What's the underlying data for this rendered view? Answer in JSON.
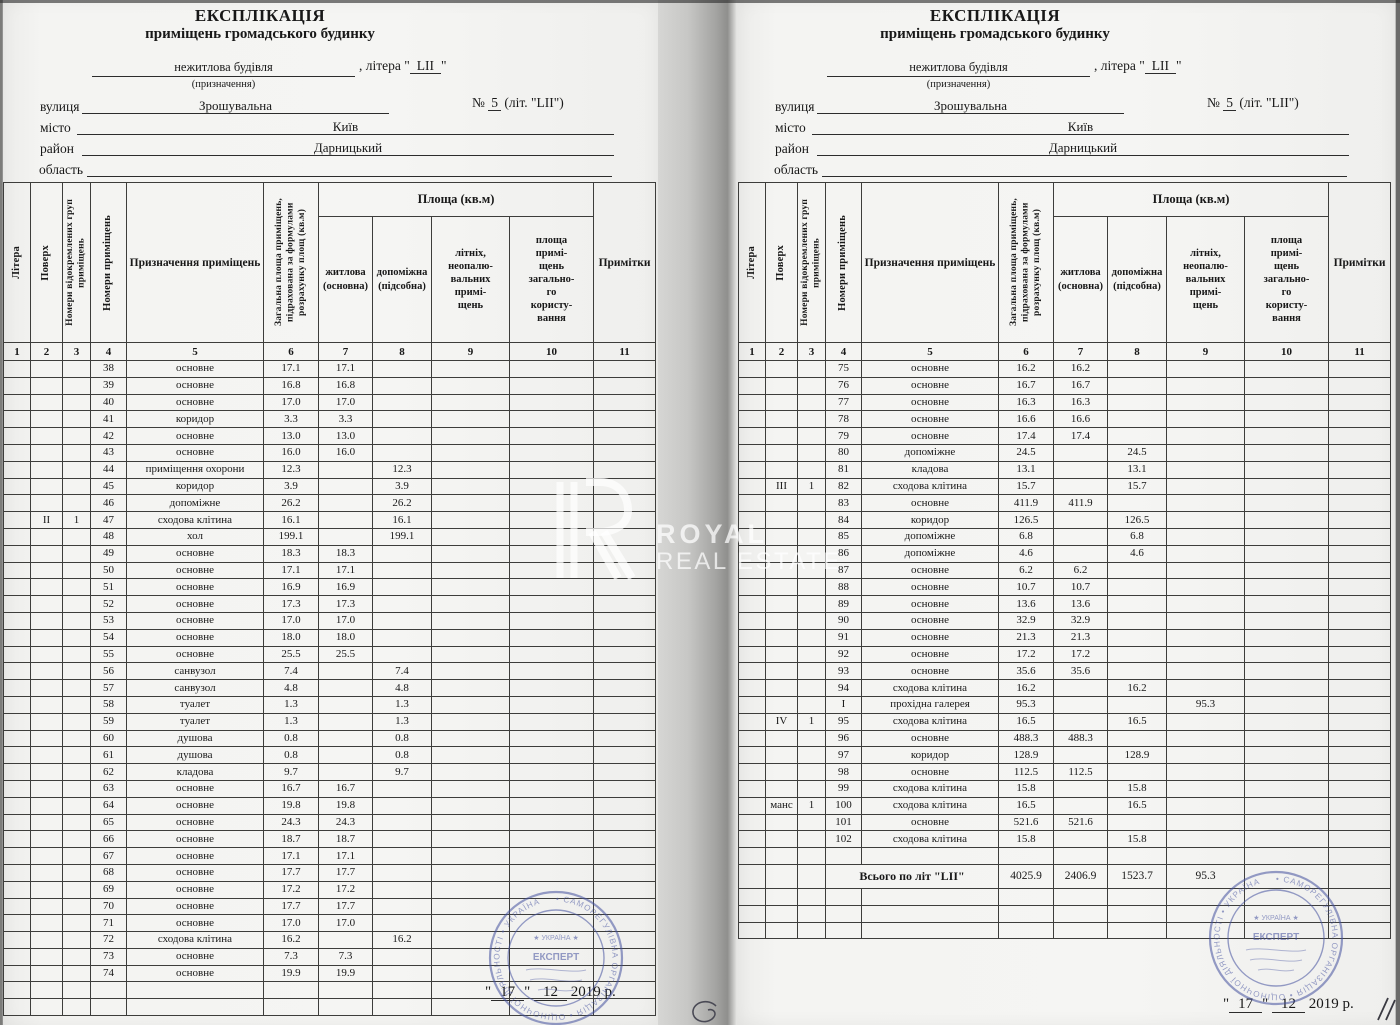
{
  "doc": {
    "title": "ЕКСПЛІКАЦІЯ",
    "subtitle": "приміщень громадського будинку",
    "purpose_value": "нежитлова будівля",
    "purpose_caption": "(призначення)",
    "litera_prefix": ", літера \"",
    "litera_value": "LII",
    "litera_suffix": "\"",
    "street_label": "вулиця",
    "street_value": "Зрошувальна",
    "num_label": "№",
    "num_value": "5",
    "num_suffix": "(літ. \"LII\")",
    "city_label": "місто",
    "city_value": "Київ",
    "district_label": "район",
    "district_value": "Дарницький",
    "region_label": "область"
  },
  "table_header": {
    "area_group": "Площа (кв.м)",
    "cols": [
      "Літера",
      "Поверх",
      "Номери відокремлених груп\nприміщень",
      "Номери приміщень",
      "Призначення приміщень",
      "Загальна площа приміщень,\nпідрахована за формулами\nрозрахунку площ (кв.м)",
      "житлова\n(основна)",
      "допоміжна\n(підсобна)",
      "літніх,\nнеопалю-\nвальних\nпримі-\nщень",
      "площа\nпримі-\nщень\nзагально-\nго\nкористу-\nвання",
      "Примітки"
    ],
    "numbers": [
      "1",
      "2",
      "3",
      "4",
      "5",
      "6",
      "7",
      "8",
      "9",
      "10",
      "11"
    ]
  },
  "pages": [
    {
      "rows": [
        [
          "",
          "",
          "",
          "38",
          "основне",
          "17.1",
          "17.1",
          "",
          "",
          "",
          ""
        ],
        [
          "",
          "",
          "",
          "39",
          "основне",
          "16.8",
          "16.8",
          "",
          "",
          "",
          ""
        ],
        [
          "",
          "",
          "",
          "40",
          "основне",
          "17.0",
          "17.0",
          "",
          "",
          "",
          ""
        ],
        [
          "",
          "",
          "",
          "41",
          "коридор",
          "3.3",
          "3.3",
          "",
          "",
          "",
          ""
        ],
        [
          "",
          "",
          "",
          "42",
          "основне",
          "13.0",
          "13.0",
          "",
          "",
          "",
          ""
        ],
        [
          "",
          "",
          "",
          "43",
          "основне",
          "16.0",
          "16.0",
          "",
          "",
          "",
          ""
        ],
        [
          "",
          "",
          "",
          "44",
          "приміщення охорони",
          "12.3",
          "",
          "12.3",
          "",
          "",
          ""
        ],
        [
          "",
          "",
          "",
          "45",
          "коридор",
          "3.9",
          "",
          "3.9",
          "",
          "",
          ""
        ],
        [
          "",
          "",
          "",
          "46",
          "допоміжне",
          "26.2",
          "",
          "26.2",
          "",
          "",
          ""
        ],
        [
          "",
          "II",
          "1",
          "47",
          "сходова клітина",
          "16.1",
          "",
          "16.1",
          "",
          "",
          ""
        ],
        [
          "",
          "",
          "",
          "48",
          "хол",
          "199.1",
          "",
          "199.1",
          "",
          "",
          ""
        ],
        [
          "",
          "",
          "",
          "49",
          "основне",
          "18.3",
          "18.3",
          "",
          "",
          "",
          ""
        ],
        [
          "",
          "",
          "",
          "50",
          "основне",
          "17.1",
          "17.1",
          "",
          "",
          "",
          ""
        ],
        [
          "",
          "",
          "",
          "51",
          "основне",
          "16.9",
          "16.9",
          "",
          "",
          "",
          ""
        ],
        [
          "",
          "",
          "",
          "52",
          "основне",
          "17.3",
          "17.3",
          "",
          "",
          "",
          ""
        ],
        [
          "",
          "",
          "",
          "53",
          "основне",
          "17.0",
          "17.0",
          "",
          "",
          "",
          ""
        ],
        [
          "",
          "",
          "",
          "54",
          "основне",
          "18.0",
          "18.0",
          "",
          "",
          "",
          ""
        ],
        [
          "",
          "",
          "",
          "55",
          "основне",
          "25.5",
          "25.5",
          "",
          "",
          "",
          ""
        ],
        [
          "",
          "",
          "",
          "56",
          "санвузол",
          "7.4",
          "",
          "7.4",
          "",
          "",
          ""
        ],
        [
          "",
          "",
          "",
          "57",
          "санвузол",
          "4.8",
          "",
          "4.8",
          "",
          "",
          ""
        ],
        [
          "",
          "",
          "",
          "58",
          "туалет",
          "1.3",
          "",
          "1.3",
          "",
          "",
          ""
        ],
        [
          "",
          "",
          "",
          "59",
          "туалет",
          "1.3",
          "",
          "1.3",
          "",
          "",
          ""
        ],
        [
          "",
          "",
          "",
          "60",
          "душова",
          "0.8",
          "",
          "0.8",
          "",
          "",
          ""
        ],
        [
          "",
          "",
          "",
          "61",
          "душова",
          "0.8",
          "",
          "0.8",
          "",
          "",
          ""
        ],
        [
          "",
          "",
          "",
          "62",
          "кладова",
          "9.7",
          "",
          "9.7",
          "",
          "",
          ""
        ],
        [
          "",
          "",
          "",
          "63",
          "основне",
          "16.7",
          "16.7",
          "",
          "",
          "",
          ""
        ],
        [
          "",
          "",
          "",
          "64",
          "основне",
          "19.8",
          "19.8",
          "",
          "",
          "",
          ""
        ],
        [
          "",
          "",
          "",
          "65",
          "основне",
          "24.3",
          "24.3",
          "",
          "",
          "",
          ""
        ],
        [
          "",
          "",
          "",
          "66",
          "основне",
          "18.7",
          "18.7",
          "",
          "",
          "",
          ""
        ],
        [
          "",
          "",
          "",
          "67",
          "основне",
          "17.1",
          "17.1",
          "",
          "",
          "",
          ""
        ],
        [
          "",
          "",
          "",
          "68",
          "основне",
          "17.7",
          "17.7",
          "",
          "",
          "",
          ""
        ],
        [
          "",
          "",
          "",
          "69",
          "основне",
          "17.2",
          "17.2",
          "",
          "",
          "",
          ""
        ],
        [
          "",
          "",
          "",
          "70",
          "основне",
          "17.7",
          "17.7",
          "",
          "",
          "",
          ""
        ],
        [
          "",
          "",
          "",
          "71",
          "основне",
          "17.0",
          "17.0",
          "",
          "",
          "",
          ""
        ],
        [
          "",
          "",
          "",
          "72",
          "сходова клітина",
          "16.2",
          "",
          "16.2",
          "",
          "",
          ""
        ],
        [
          "",
          "",
          "",
          "73",
          "основне",
          "7.3",
          "7.3",
          "",
          "",
          "",
          ""
        ],
        [
          "",
          "",
          "",
          "74",
          "основне",
          "19.9",
          "19.9",
          "",
          "",
          "",
          ""
        ]
      ],
      "blank_rows_bottom": 2,
      "date": {
        "day": "17",
        "month": "12",
        "year": "2019 р."
      }
    },
    {
      "rows": [
        [
          "",
          "",
          "",
          "75",
          "основне",
          "16.2",
          "16.2",
          "",
          "",
          "",
          ""
        ],
        [
          "",
          "",
          "",
          "76",
          "основне",
          "16.7",
          "16.7",
          "",
          "",
          "",
          ""
        ],
        [
          "",
          "",
          "",
          "77",
          "основне",
          "16.3",
          "16.3",
          "",
          "",
          "",
          ""
        ],
        [
          "",
          "",
          "",
          "78",
          "основне",
          "16.6",
          "16.6",
          "",
          "",
          "",
          ""
        ],
        [
          "",
          "",
          "",
          "79",
          "основне",
          "17.4",
          "17.4",
          "",
          "",
          "",
          ""
        ],
        [
          "",
          "",
          "",
          "80",
          "допоміжне",
          "24.5",
          "",
          "24.5",
          "",
          "",
          ""
        ],
        [
          "",
          "",
          "",
          "81",
          "кладова",
          "13.1",
          "",
          "13.1",
          "",
          "",
          ""
        ],
        [
          "",
          "III",
          "1",
          "82",
          "сходова клітина",
          "15.7",
          "",
          "15.7",
          "",
          "",
          ""
        ],
        [
          "",
          "",
          "",
          "83",
          "основне",
          "411.9",
          "411.9",
          "",
          "",
          "",
          ""
        ],
        [
          "",
          "",
          "",
          "84",
          "коридор",
          "126.5",
          "",
          "126.5",
          "",
          "",
          ""
        ],
        [
          "",
          "",
          "",
          "85",
          "допоміжне",
          "6.8",
          "",
          "6.8",
          "",
          "",
          ""
        ],
        [
          "",
          "",
          "",
          "86",
          "допоміжне",
          "4.6",
          "",
          "4.6",
          "",
          "",
          ""
        ],
        [
          "",
          "",
          "",
          "87",
          "основне",
          "6.2",
          "6.2",
          "",
          "",
          "",
          ""
        ],
        [
          "",
          "",
          "",
          "88",
          "основне",
          "10.7",
          "10.7",
          "",
          "",
          "",
          ""
        ],
        [
          "",
          "",
          "",
          "89",
          "основне",
          "13.6",
          "13.6",
          "",
          "",
          "",
          ""
        ],
        [
          "",
          "",
          "",
          "90",
          "основне",
          "32.9",
          "32.9",
          "",
          "",
          "",
          ""
        ],
        [
          "",
          "",
          "",
          "91",
          "основне",
          "21.3",
          "21.3",
          "",
          "",
          "",
          ""
        ],
        [
          "",
          "",
          "",
          "92",
          "основне",
          "17.2",
          "17.2",
          "",
          "",
          "",
          ""
        ],
        [
          "",
          "",
          "",
          "93",
          "основне",
          "35.6",
          "35.6",
          "",
          "",
          "",
          ""
        ],
        [
          "",
          "",
          "",
          "94",
          "сходова клітина",
          "16.2",
          "",
          "16.2",
          "",
          "",
          ""
        ],
        [
          "",
          "",
          "",
          "I",
          "прохідна галерея",
          "95.3",
          "",
          "",
          "95.3",
          "",
          ""
        ],
        [
          "",
          "IV",
          "1",
          "95",
          "сходова клітина",
          "16.5",
          "",
          "16.5",
          "",
          "",
          ""
        ],
        [
          "",
          "",
          "",
          "96",
          "основне",
          "488.3",
          "488.3",
          "",
          "",
          "",
          ""
        ],
        [
          "",
          "",
          "",
          "97",
          "коридор",
          "128.9",
          "",
          "128.9",
          "",
          "",
          ""
        ],
        [
          "",
          "",
          "",
          "98",
          "основне",
          "112.5",
          "112.5",
          "",
          "",
          "",
          ""
        ],
        [
          "",
          "",
          "",
          "99",
          "сходова клітина",
          "15.8",
          "",
          "15.8",
          "",
          "",
          ""
        ],
        [
          "",
          "манс",
          "1",
          "100",
          "сходова клітина",
          "16.5",
          "",
          "16.5",
          "",
          "",
          ""
        ],
        [
          "",
          "",
          "",
          "101",
          "основне",
          "521.6",
          "521.6",
          "",
          "",
          "",
          ""
        ],
        [
          "",
          "",
          "",
          "102",
          "сходова клітина",
          "15.8",
          "",
          "15.8",
          "",
          "",
          ""
        ]
      ],
      "blank_rows_before_total": 1,
      "total_row": {
        "label": "Всього по літ \"LII\"",
        "total": "4025.9",
        "zhytlova": "2406.9",
        "dopomizhna": "1523.7",
        "litnikh": "95.3"
      },
      "blank_rows_after_total": 3,
      "date": {
        "day": "17",
        "month": "12",
        "year": "2019 р."
      }
    }
  ],
  "watermark": {
    "brand_top": "ROYAL",
    "brand_bottom": "REAL ESTATE"
  },
  "stamp": {
    "ring_text": "• САМОРЕГУЛІВНА ОРГАНІЗАЦІЯ • ОЦІНОЧНОЇ ДІЯЛЬНОСТІ • УКРАЇНА",
    "center_text": "ЕКСПЕРТ"
  }
}
